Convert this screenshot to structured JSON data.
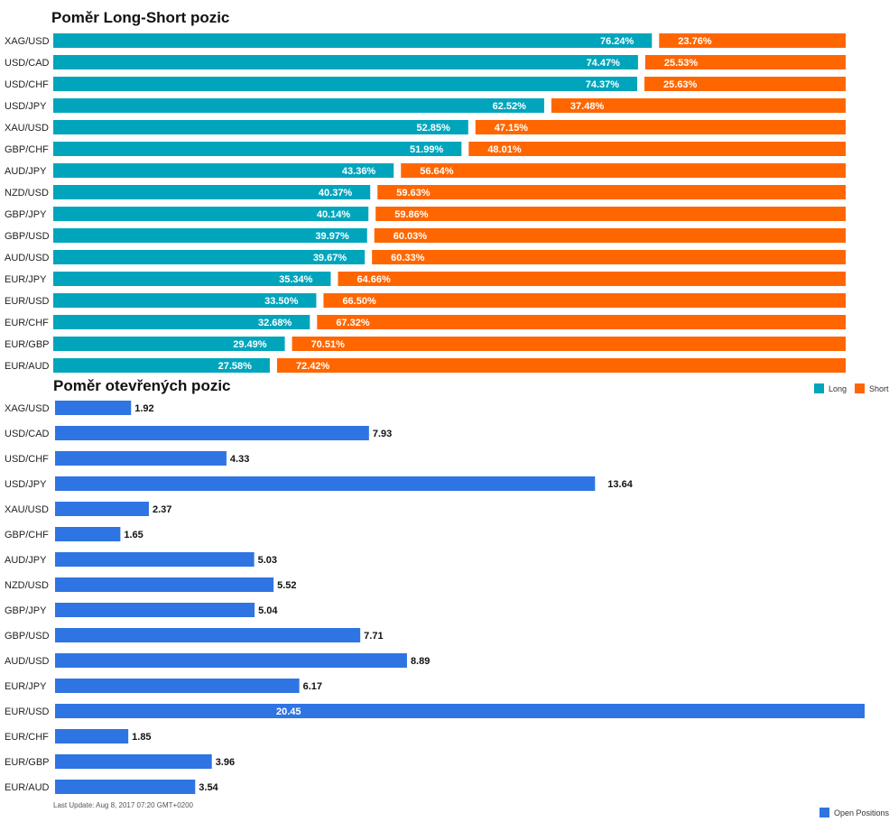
{
  "colors": {
    "long": "#00a5bc",
    "short": "#ff6600",
    "open": "#2f74e3"
  },
  "chart_data": [
    {
      "type": "bar",
      "stacked": true,
      "orientation": "horizontal",
      "title": "Poměr Long-Short pozic",
      "categories": [
        "XAG/USD",
        "USD/CAD",
        "USD/CHF",
        "USD/JPY",
        "XAU/USD",
        "GBP/CHF",
        "AUD/JPY",
        "NZD/USD",
        "GBP/JPY",
        "GBP/USD",
        "AUD/USD",
        "EUR/JPY",
        "EUR/USD",
        "EUR/CHF",
        "EUR/GBP",
        "EUR/AUD"
      ],
      "series": [
        {
          "name": "Long",
          "values": [
            76.24,
            74.47,
            74.37,
            62.52,
            52.85,
            51.99,
            43.36,
            40.37,
            40.14,
            39.97,
            39.67,
            35.34,
            33.5,
            32.68,
            29.49,
            27.58
          ],
          "labels": [
            "76.24%",
            "74.47%",
            "74.37%",
            "62.52%",
            "52.85%",
            "51.99%",
            "43.36%",
            "40.37%",
            "40.14%",
            "39.97%",
            "39.67%",
            "35.34%",
            "33.50%",
            "32.68%",
            "29.49%",
            "27.58%"
          ]
        },
        {
          "name": "Short",
          "values": [
            23.76,
            25.53,
            25.63,
            37.48,
            47.15,
            48.01,
            56.64,
            59.63,
            59.86,
            60.03,
            60.33,
            64.66,
            66.5,
            67.32,
            70.51,
            72.42
          ],
          "labels": [
            "23.76%",
            "25.53%",
            "25.63%",
            "37.48%",
            "47.15%",
            "48.01%",
            "56.64%",
            "59.63%",
            "59.86%",
            "60.03%",
            "60.33%",
            "64.66%",
            "66.50%",
            "67.32%",
            "70.51%",
            "72.42%"
          ]
        }
      ],
      "xlim": [
        0,
        100
      ],
      "legend": "bottom-right"
    },
    {
      "type": "bar",
      "orientation": "horizontal",
      "title": "Poměr otevřených pozic",
      "categories": [
        "XAG/USD",
        "USD/CAD",
        "USD/CHF",
        "USD/JPY",
        "XAU/USD",
        "GBP/CHF",
        "AUD/JPY",
        "NZD/USD",
        "GBP/JPY",
        "GBP/USD",
        "AUD/USD",
        "EUR/JPY",
        "EUR/USD",
        "EUR/CHF",
        "EUR/GBP",
        "EUR/AUD"
      ],
      "series": [
        {
          "name": "Open Positions",
          "values": [
            1.92,
            7.93,
            4.33,
            13.64,
            2.37,
            1.65,
            5.03,
            5.52,
            5.04,
            7.71,
            8.89,
            6.17,
            20.45,
            1.85,
            3.96,
            3.54
          ],
          "labels": [
            "1.92",
            "7.93",
            "4.33",
            "13.64",
            "2.37",
            "1.65",
            "5.03",
            "5.52",
            "5.04",
            "7.71",
            "8.89",
            "6.17",
            "20.45",
            "1.85",
            "3.96",
            "3.54"
          ]
        }
      ],
      "xlim": [
        0,
        20.45
      ],
      "legend": "bottom-right"
    }
  ],
  "legend_top": {
    "long": "Long",
    "short": "Short"
  },
  "legend_bottom": {
    "open": "Open Positions"
  },
  "footer": {
    "last_update": "Last Update: Aug 8, 2017 07:20 GMT+0200"
  }
}
